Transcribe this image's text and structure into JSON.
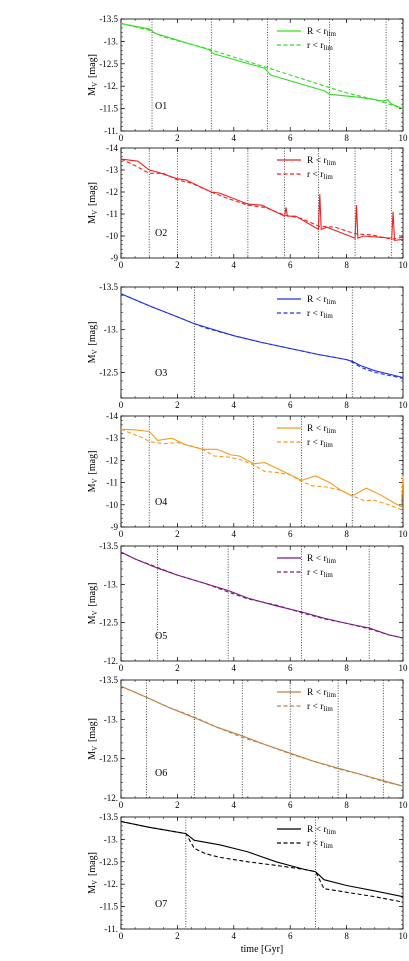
{
  "figure": {
    "xlabel": "time [Gyr]",
    "ylabel_main": "M",
    "ylabel_sub": "V",
    "ylabel_unit": "[mag]",
    "legend_solid_main": "R < r",
    "legend_dashed_main": "r < r",
    "legend_sub": "lim"
  },
  "chart_data": [
    {
      "type": "line",
      "panel": "O1",
      "color": "#33dd22",
      "xlim": [
        0,
        10
      ],
      "ylim": [
        -11,
        -13.5
      ],
      "yticks": [
        -13.5,
        -13,
        -12.5,
        -12,
        -11.5,
        -11
      ],
      "ytick_labels": [
        "-13.5",
        "-13.",
        "-12.5",
        "-12.",
        "-11.5",
        "-11."
      ],
      "xticks": [
        0,
        2,
        4,
        6,
        8,
        10
      ],
      "vlines": [
        1.1,
        3.2,
        5.2,
        7.4,
        9.4
      ],
      "series": [
        {
          "style": "solid",
          "x": [
            0,
            1.0,
            1.2,
            3.1,
            3.3,
            5.1,
            5.3,
            7.2,
            7.4,
            8.5,
            9.3,
            9.45,
            9.6,
            10
          ],
          "y": [
            -13.4,
            -13.28,
            -13.18,
            -12.82,
            -12.72,
            -12.4,
            -12.25,
            -11.9,
            -11.82,
            -11.75,
            -11.67,
            -11.7,
            -11.6,
            -11.5
          ]
        },
        {
          "style": "dashed",
          "x": [
            0,
            1.0,
            1.5,
            3.0,
            4.0,
            5.0,
            6.0,
            7.0,
            8.0,
            9.0,
            10
          ],
          "y": [
            -13.4,
            -13.25,
            -13.1,
            -12.85,
            -12.65,
            -12.45,
            -12.25,
            -12.05,
            -11.85,
            -11.7,
            -11.5
          ]
        }
      ]
    },
    {
      "type": "line",
      "panel": "O2",
      "color": "#ee2222",
      "xlim": [
        0,
        10
      ],
      "ylim": [
        -9,
        -14
      ],
      "yticks": [
        -14,
        -13,
        -12,
        -11,
        -10,
        -9
      ],
      "ytick_labels": [
        "-14",
        "-13",
        "-12",
        "-11",
        "-10",
        "-9"
      ],
      "xticks": [
        0,
        2,
        4,
        6,
        8,
        10
      ],
      "vlines": [
        1.0,
        2.0,
        3.2,
        4.5,
        5.8,
        7.0,
        8.3,
        9.6
      ],
      "series": [
        {
          "style": "solid",
          "x": [
            0,
            0.6,
            1.0,
            1.3,
            2.0,
            2.3,
            3.2,
            3.5,
            4.5,
            5.0,
            5.8,
            5.85,
            5.9,
            6.2,
            7.0,
            7.05,
            7.1,
            7.3,
            8.3,
            8.35,
            8.4,
            8.6,
            9.6,
            9.65,
            9.7,
            10
          ],
          "y": [
            -13.5,
            -13.4,
            -13.0,
            -12.9,
            -12.6,
            -12.55,
            -12.0,
            -11.95,
            -11.45,
            -11.4,
            -10.9,
            -11.3,
            -10.9,
            -10.9,
            -10.3,
            -11.9,
            -10.3,
            -10.4,
            -9.9,
            -11.4,
            -9.9,
            -10.0,
            -9.9,
            -11.1,
            -9.8,
            -9.85
          ]
        },
        {
          "style": "dashed",
          "x": [
            0,
            0.5,
            1.0,
            1.5,
            2.0,
            2.5,
            3.2,
            3.8,
            4.5,
            5.1,
            5.8,
            6.4,
            7.0,
            7.6,
            8.3,
            8.9,
            9.6,
            10
          ],
          "y": [
            -13.5,
            -13.2,
            -12.85,
            -12.85,
            -12.55,
            -12.4,
            -12.0,
            -11.7,
            -11.4,
            -11.3,
            -10.95,
            -10.8,
            -10.45,
            -10.4,
            -10.1,
            -10.05,
            -9.85,
            -9.95
          ]
        }
      ]
    },
    {
      "type": "line",
      "panel": "O3",
      "color": "#2233dd",
      "xlim": [
        0,
        10
      ],
      "ylim": [
        -12.2,
        -13.5
      ],
      "yticks": [
        -13.5,
        -13,
        -12.5
      ],
      "ytick_labels": [
        "-13.5",
        "-13.",
        "-12.5"
      ],
      "xticks": [
        0,
        2,
        4,
        6,
        8,
        10
      ],
      "vlines": [
        2.6,
        8.2
      ],
      "series": [
        {
          "style": "solid",
          "x": [
            0,
            1,
            2,
            2.6,
            3,
            4,
            5,
            6,
            7,
            8,
            8.2,
            8.5,
            9,
            10
          ],
          "y": [
            -13.42,
            -13.28,
            -13.15,
            -13.07,
            -13.03,
            -12.93,
            -12.85,
            -12.78,
            -12.71,
            -12.65,
            -12.63,
            -12.58,
            -12.52,
            -12.44
          ]
        },
        {
          "style": "dashed",
          "x": [
            0,
            1,
            2,
            2.6,
            3,
            4,
            5,
            6,
            7,
            8,
            8.2,
            8.5,
            9,
            10
          ],
          "y": [
            -13.42,
            -13.28,
            -13.15,
            -13.07,
            -13.02,
            -12.93,
            -12.85,
            -12.78,
            -12.71,
            -12.65,
            -12.62,
            -12.56,
            -12.5,
            -12.43
          ]
        }
      ]
    },
    {
      "type": "line",
      "panel": "O4",
      "color": "#f59a1e",
      "xlim": [
        0,
        10
      ],
      "ylim": [
        -9,
        -14
      ],
      "yticks": [
        -14,
        -13,
        -12,
        -11,
        -10,
        -9
      ],
      "ytick_labels": [
        "-14",
        "-13",
        "-12",
        "-11",
        "-10",
        "-9"
      ],
      "xticks": [
        0,
        2,
        4,
        6,
        8,
        10
      ],
      "vlines": [
        1.0,
        2.9,
        4.7,
        6.4,
        8.2
      ],
      "series": [
        {
          "style": "solid",
          "x": [
            0,
            0.5,
            1.0,
            1.3,
            1.8,
            2.3,
            2.9,
            3.4,
            3.9,
            4.2,
            4.7,
            5.1,
            5.6,
            6.0,
            6.4,
            6.9,
            7.4,
            7.8,
            8.2,
            8.7,
            9.2,
            9.6,
            9.95,
            10
          ],
          "y": [
            -13.4,
            -13.38,
            -13.3,
            -12.9,
            -13.0,
            -12.7,
            -12.5,
            -12.5,
            -12.25,
            -12.2,
            -11.85,
            -11.9,
            -11.6,
            -11.35,
            -11.1,
            -11.3,
            -11.0,
            -10.65,
            -10.4,
            -10.75,
            -10.45,
            -10.15,
            -9.9,
            -11.3
          ]
        },
        {
          "style": "dashed",
          "x": [
            0,
            0.4,
            0.8,
            1.0,
            1.5,
            2.0,
            2.5,
            2.9,
            3.3,
            3.8,
            4.2,
            4.7,
            5.1,
            5.6,
            6.0,
            6.4,
            6.8,
            7.3,
            7.8,
            8.2,
            8.6,
            9.0,
            9.5,
            10
          ],
          "y": [
            -13.4,
            -13.2,
            -13.0,
            -12.85,
            -12.75,
            -12.8,
            -12.65,
            -12.5,
            -12.2,
            -12.15,
            -12.05,
            -11.8,
            -11.5,
            -11.45,
            -11.35,
            -11.05,
            -10.85,
            -10.8,
            -10.65,
            -10.4,
            -10.2,
            -10.2,
            -10.0,
            -9.75
          ]
        }
      ]
    },
    {
      "type": "line",
      "panel": "O5",
      "color": "#7a1a80",
      "xlim": [
        0,
        10
      ],
      "ylim": [
        -12,
        -13.5
      ],
      "yticks": [
        -13.5,
        -13,
        -12.5,
        -12
      ],
      "ytick_labels": [
        "-13.5",
        "-13.",
        "-12.5",
        "-12."
      ],
      "xticks": [
        0,
        2,
        4,
        6,
        8,
        10
      ],
      "vlines": [
        1.3,
        3.8,
        6.4,
        8.8
      ],
      "series": [
        {
          "style": "solid",
          "x": [
            0,
            0.5,
            1.3,
            2,
            3,
            3.8,
            4.5,
            5.5,
            6.4,
            7.2,
            8,
            8.8,
            9.5,
            10
          ],
          "y": [
            -13.42,
            -13.33,
            -13.21,
            -13.12,
            -13.01,
            -12.92,
            -12.82,
            -12.72,
            -12.64,
            -12.56,
            -12.49,
            -12.43,
            -12.34,
            -12.3
          ]
        },
        {
          "style": "dashed",
          "x": [
            0,
            0.5,
            1.3,
            2,
            3,
            3.8,
            4.5,
            5.5,
            6.4,
            7.2,
            8,
            8.8,
            9.5,
            10
          ],
          "y": [
            -13.42,
            -13.33,
            -13.22,
            -13.12,
            -13.01,
            -12.9,
            -12.81,
            -12.73,
            -12.63,
            -12.55,
            -12.49,
            -12.42,
            -12.34,
            -12.3
          ]
        }
      ]
    },
    {
      "type": "line",
      "panel": "O6",
      "color": "#b8824a",
      "xlim": [
        0,
        10
      ],
      "ylim": [
        -12,
        -13.5
      ],
      "yticks": [
        -13.5,
        -13,
        -12.5,
        -12
      ],
      "ytick_labels": [
        "-13.5",
        "-13.",
        "-12.5",
        "-12."
      ],
      "xticks": [
        0,
        2,
        4,
        6,
        8,
        10
      ],
      "vlines": [
        0.9,
        2.6,
        4.3,
        6.0,
        7.7,
        9.3
      ],
      "series": [
        {
          "style": "solid",
          "x": [
            0,
            0.9,
            1.7,
            2.6,
            3.4,
            4.3,
            5.1,
            6.0,
            6.8,
            7.7,
            8.5,
            9.3,
            10
          ],
          "y": [
            -13.42,
            -13.28,
            -13.15,
            -13.02,
            -12.9,
            -12.79,
            -12.68,
            -12.57,
            -12.47,
            -12.38,
            -12.3,
            -12.22,
            -12.15
          ]
        },
        {
          "style": "dashed",
          "x": [
            0,
            0.9,
            1.7,
            2.6,
            3.4,
            4.3,
            5.1,
            6.0,
            6.8,
            7.7,
            8.5,
            9.3,
            10
          ],
          "y": [
            -13.42,
            -13.28,
            -13.15,
            -13.03,
            -12.9,
            -12.77,
            -12.68,
            -12.56,
            -12.47,
            -12.37,
            -12.3,
            -12.21,
            -12.15
          ]
        }
      ]
    },
    {
      "type": "line",
      "panel": "O7",
      "color": "#000000",
      "xlim": [
        0,
        10
      ],
      "ylim": [
        -11,
        -13.5
      ],
      "yticks": [
        -13.5,
        -13,
        -12.5,
        -12,
        -11.5,
        -11
      ],
      "ytick_labels": [
        "-13.5",
        "-13.",
        "-12.5",
        "-12.",
        "-11.5",
        "-11."
      ],
      "xticks": [
        0,
        2,
        4,
        6,
        8,
        10
      ],
      "vlines": [
        2.3,
        6.9
      ],
      "series": [
        {
          "style": "solid",
          "x": [
            0,
            1,
            2.3,
            2.6,
            3.5,
            4.5,
            5.5,
            6.5,
            6.9,
            7.2,
            8,
            9,
            10
          ],
          "y": [
            -13.4,
            -13.27,
            -13.13,
            -12.98,
            -12.88,
            -12.72,
            -12.5,
            -12.33,
            -12.28,
            -12.1,
            -11.97,
            -11.85,
            -11.72
          ]
        },
        {
          "style": "dashed",
          "x": [
            0,
            1,
            2.3,
            2.6,
            3.0,
            3.5,
            4.5,
            5.5,
            6.5,
            6.9,
            7.2,
            8,
            9,
            10
          ],
          "y": [
            -13.4,
            -13.27,
            -13.13,
            -12.8,
            -12.68,
            -12.6,
            -12.5,
            -12.42,
            -12.33,
            -12.28,
            -11.9,
            -11.82,
            -11.72,
            -11.6
          ]
        }
      ]
    }
  ]
}
